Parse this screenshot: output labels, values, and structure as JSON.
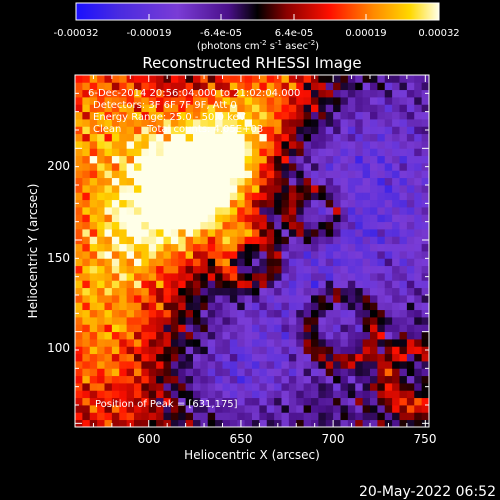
{
  "chart_data": {
    "type": "heatmap",
    "title": "Reconstructed RHESSI Image",
    "xlabel": "Heliocentric X (arcsec)",
    "ylabel": "Heliocentric Y (arcsec)",
    "xlim": [
      560,
      752
    ],
    "ylim": [
      48,
      240
    ],
    "x_ticks": [
      600,
      650,
      700,
      750
    ],
    "y_ticks": [
      100,
      150,
      200
    ],
    "colorbar": {
      "ticks": [
        "-0.00032",
        "-0.00019",
        "-6.4e-05",
        "6.4e-05",
        "0.00019",
        "0.00032"
      ],
      "range": [
        -0.00032,
        0.00032
      ],
      "units_main": "(photons cm",
      "units_sup1": "-2",
      "units_mid": " s",
      "units_sup2": "-1",
      "units_end": " asec",
      "units_sup3": "-2",
      "units_close": ")"
    },
    "annotations": {
      "time": "6-Dec-2014 20:56:04.000 to 21:02:04.000",
      "detectors": "Detectors: 3F 6F 7F 9F, Att 0",
      "energy": "Energy Range: 25.0 - 50.0 keV",
      "method": "Clean",
      "counts": "Total counts: 4.05E+03",
      "peak": "Position of Peak = [631,175]"
    },
    "peak": [
      631,
      175
    ]
  },
  "footer": {
    "date": "20-May-2022 06:52"
  }
}
